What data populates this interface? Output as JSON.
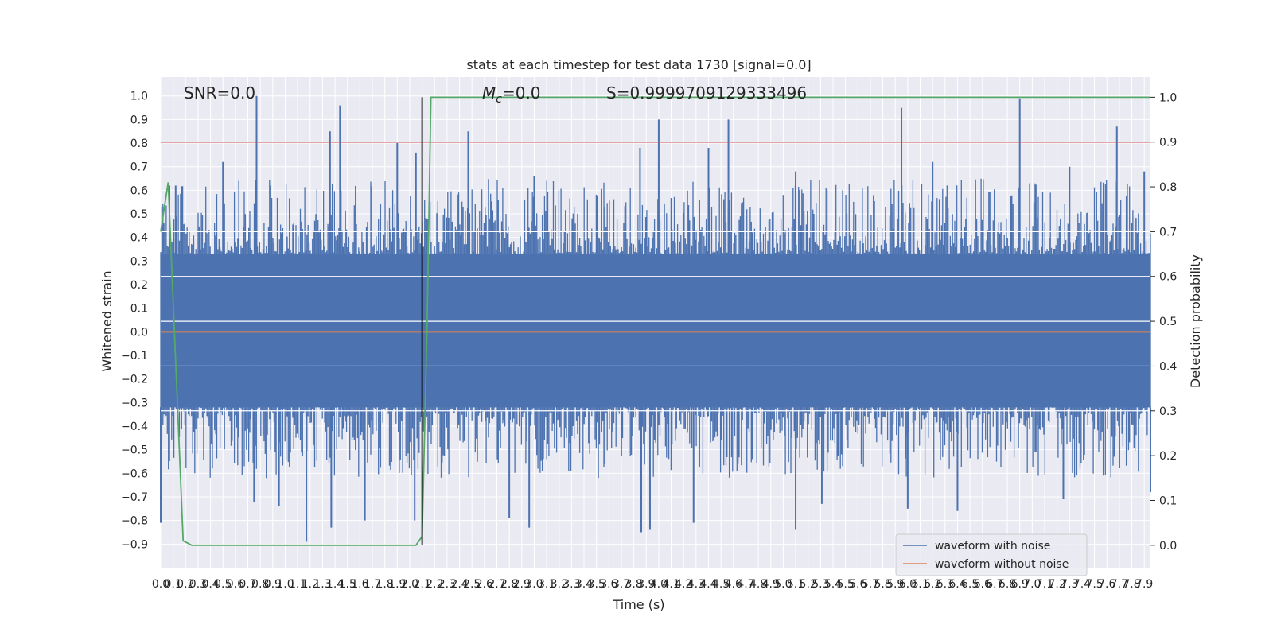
{
  "chart_data": {
    "type": "line",
    "title": "stats at each timestep for test data 1730 [signal=0.0]",
    "xlabel": "Time (s)",
    "ylabel": "Whitened strain",
    "y2label": "Detection probability",
    "xlim": [
      0.0,
      7.95
    ],
    "ylim": [
      -1.0,
      1.08
    ],
    "y2lim": [
      -0.05,
      1.045
    ],
    "grid": true,
    "legend_position": "bottom-right",
    "x_ticks": [
      "0.0",
      "0.1",
      "0.2",
      "0.3",
      "0.4",
      "0.5",
      "0.6",
      "0.7",
      "0.8",
      "0.9",
      "1.0",
      "1.1",
      "1.2",
      "1.3",
      "1.4",
      "1.5",
      "1.6",
      "1.7",
      "1.8",
      "1.9",
      "2.0",
      "2.1",
      "2.2",
      "2.3",
      "2.4",
      "2.5",
      "2.6",
      "2.7",
      "2.8",
      "2.9",
      "3.0",
      "3.1",
      "3.2",
      "3.3",
      "3.4",
      "3.5",
      "3.6",
      "3.7",
      "3.8",
      "3.9",
      "4.0",
      "4.1",
      "4.2",
      "4.3",
      "4.4",
      "4.5",
      "4.6",
      "4.7",
      "4.8",
      "4.9",
      "5.0",
      "5.1",
      "5.2",
      "5.3",
      "5.4",
      "5.5",
      "5.6",
      "5.7",
      "5.8",
      "5.9",
      "6.0",
      "6.1",
      "6.2",
      "6.3",
      "6.4",
      "6.5",
      "6.6",
      "6.7",
      "6.8",
      "6.9",
      "7.0",
      "7.1",
      "7.2",
      "7.3",
      "7.4",
      "7.5",
      "7.6",
      "7.7",
      "7.8",
      "7.9"
    ],
    "y_ticks": [
      "−0.9",
      "−0.8",
      "−0.7",
      "−0.6",
      "−0.5",
      "−0.4",
      "−0.3",
      "−0.2",
      "−0.1",
      "0.0",
      "0.1",
      "0.2",
      "0.3",
      "0.4",
      "0.5",
      "0.6",
      "0.7",
      "0.8",
      "0.9",
      "1.0"
    ],
    "y2_ticks": [
      "0.0",
      "0.1",
      "0.2",
      "0.3",
      "0.4",
      "0.5",
      "0.6",
      "0.7",
      "0.8",
      "0.9",
      "1.0"
    ],
    "annotations": {
      "snr": "SNR=0.0",
      "mc": "M",
      "mc_sub": "c",
      "mc_val": "=0.0",
      "s": "S=0.9999709129333496"
    },
    "threshold_line": {
      "y2": 0.9,
      "color": "#c44e52"
    },
    "marker_line": {
      "x": 2.1,
      "color": "#000000"
    },
    "series": [
      {
        "name": "waveform with noise",
        "color": "#4c72b0",
        "axis": "left",
        "envelope_upper": 0.33,
        "envelope_lower": -0.32,
        "peaks": [
          {
            "x": 0.02,
            "y": 0.45
          },
          {
            "x": 0.07,
            "y": 0.62
          },
          {
            "x": 0.12,
            "y": 0.62
          },
          {
            "x": 0.5,
            "y": 0.72
          },
          {
            "x": 0.77,
            "y": 1.0
          },
          {
            "x": 1.36,
            "y": 0.85
          },
          {
            "x": 1.44,
            "y": 0.96
          },
          {
            "x": 1.9,
            "y": 0.8
          },
          {
            "x": 2.05,
            "y": 0.76
          },
          {
            "x": 2.47,
            "y": 0.85
          },
          {
            "x": 3.0,
            "y": 0.66
          },
          {
            "x": 3.85,
            "y": 0.78
          },
          {
            "x": 4.0,
            "y": 0.9
          },
          {
            "x": 4.4,
            "y": 0.78
          },
          {
            "x": 4.56,
            "y": 0.9
          },
          {
            "x": 5.1,
            "y": 0.68
          },
          {
            "x": 5.95,
            "y": 0.95
          },
          {
            "x": 6.2,
            "y": 0.72
          },
          {
            "x": 6.9,
            "y": 0.99
          },
          {
            "x": 7.3,
            "y": 0.7
          },
          {
            "x": 7.68,
            "y": 0.87
          },
          {
            "x": 7.9,
            "y": 0.68
          }
        ],
        "troughs": [
          {
            "x": 0.0,
            "y": -0.81
          },
          {
            "x": 0.75,
            "y": -0.72
          },
          {
            "x": 0.95,
            "y": -0.74
          },
          {
            "x": 1.17,
            "y": -0.89
          },
          {
            "x": 1.37,
            "y": -0.83
          },
          {
            "x": 1.64,
            "y": -0.8
          },
          {
            "x": 2.04,
            "y": -0.8
          },
          {
            "x": 2.8,
            "y": -0.79
          },
          {
            "x": 2.96,
            "y": -0.83
          },
          {
            "x": 3.86,
            "y": -0.85
          },
          {
            "x": 3.93,
            "y": -0.84
          },
          {
            "x": 4.28,
            "y": -0.81
          },
          {
            "x": 5.1,
            "y": -0.84
          },
          {
            "x": 5.31,
            "y": -0.73
          },
          {
            "x": 6.0,
            "y": -0.75
          },
          {
            "x": 6.4,
            "y": -0.76
          },
          {
            "x": 7.25,
            "y": -0.71
          },
          {
            "x": 7.95,
            "y": -0.68
          }
        ]
      },
      {
        "name": "waveform without noise",
        "color": "#dd8452",
        "axis": "left",
        "x": [
          0.0,
          7.95
        ],
        "y": [
          0.0,
          0.0
        ]
      },
      {
        "color": "#55a868",
        "axis": "right",
        "x": [
          0.0,
          0.06,
          0.18,
          0.25,
          2.05,
          2.1,
          2.14,
          2.17,
          7.95
        ],
        "y": [
          0.7,
          0.81,
          0.01,
          0.0,
          0.0,
          0.02,
          0.5,
          1.0,
          1.0
        ]
      }
    ]
  }
}
